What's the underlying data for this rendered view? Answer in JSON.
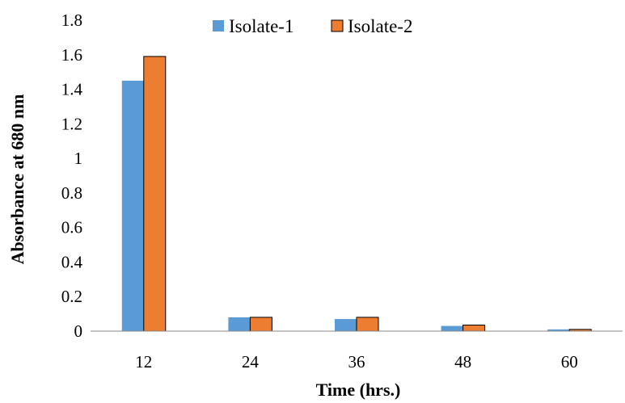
{
  "chart_data": {
    "type": "bar",
    "categories": [
      "12",
      "24",
      "36",
      "48",
      "60"
    ],
    "series": [
      {
        "name": "Isolate-1",
        "values": [
          1.45,
          0.08,
          0.07,
          0.03,
          0.01
        ],
        "color": "#5B9BD5"
      },
      {
        "name": "Isolate-2",
        "values": [
          1.59,
          0.08,
          0.08,
          0.035,
          0.01
        ],
        "color": "#ED7D31"
      }
    ],
    "xlabel": "Time (hrs.)",
    "ylabel": "Absorbance at 680 nm",
    "ylim": [
      0,
      1.8
    ],
    "yticks": [
      "0",
      "0.2",
      "0.4",
      "0.6",
      "0.8",
      "1",
      "1.2",
      "1.4",
      "1.6",
      "1.8"
    ],
    "legend_position": "top",
    "grid": false
  }
}
